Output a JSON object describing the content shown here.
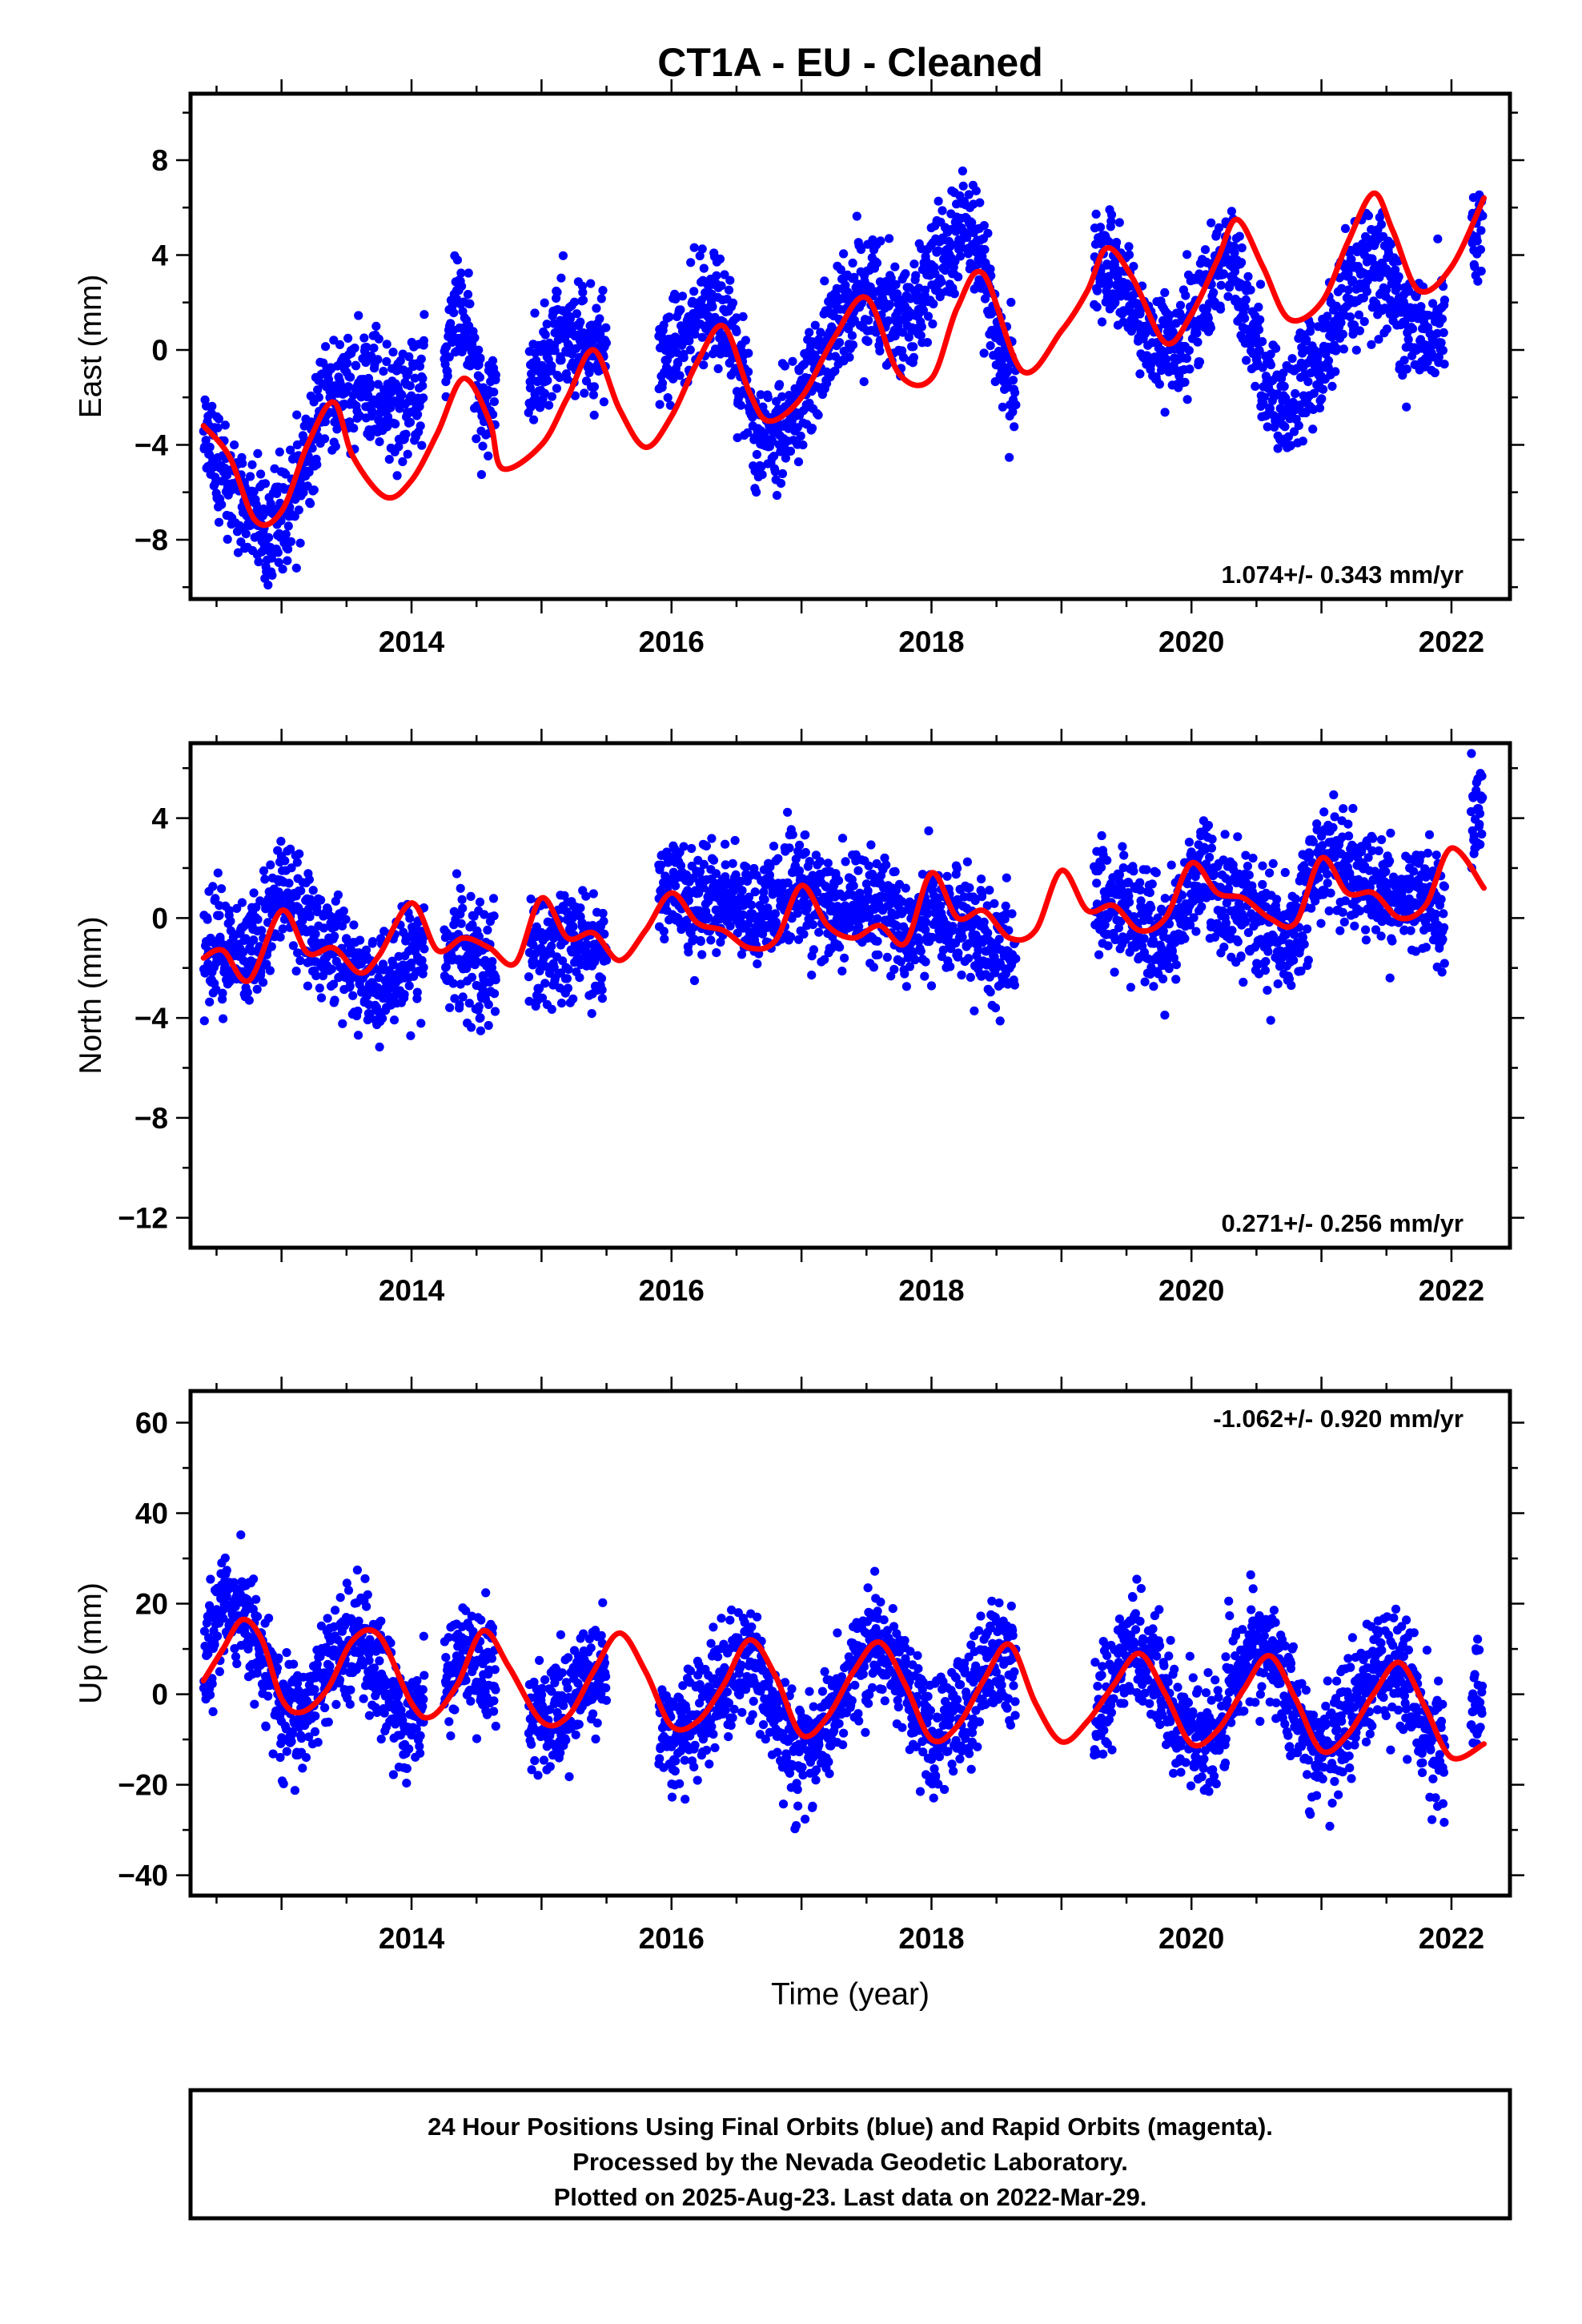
{
  "title": "CT1A  - EU - Cleaned",
  "footer": {
    "lines": [
      "24 Hour Positions Using Final Orbits (blue) and Rapid Orbits (magenta).",
      "Processed by the Nevada Geodetic Laboratory.",
      "Plotted on 2025-Aug-23. Last data on 2022-Mar-29."
    ]
  },
  "colors": {
    "data_points": "#0000ff",
    "model_fit": "#ff0000",
    "frame": "#000000"
  },
  "chart_data": [
    {
      "type": "scatter",
      "name": "east",
      "ylabel": "East (mm)",
      "xlabel": "",
      "xlim": [
        2012.3,
        2022.45
      ],
      "ylim": [
        -10.5,
        10.8
      ],
      "xticks": [
        2014,
        2016,
        2018,
        2020,
        2022
      ],
      "yticks": [
        -8,
        -4,
        0,
        4,
        8
      ],
      "yticklabels": [
        "−8",
        "−4",
        "0",
        "4",
        "8"
      ],
      "rate_text": "1.074+/- 0.343 mm/yr",
      "rate_position": "bottom-right",
      "observation_segments": [
        [
          2012.4,
          2013.25
        ],
        [
          2013.25,
          2014.1
        ],
        [
          2014.25,
          2014.65
        ],
        [
          2014.9,
          2015.5
        ],
        [
          2015.9,
          2018.65
        ],
        [
          2019.25,
          2021.95
        ],
        [
          2022.15,
          2022.24
        ]
      ],
      "series": [
        {
          "name": "",
          "kind": "model_line",
          "x": [
            2012.4,
            2012.6,
            2012.8,
            2013.0,
            2013.2,
            2013.4,
            2013.55,
            2013.8,
            2014.0,
            2014.2,
            2014.4,
            2014.6,
            2014.7,
            2015.0,
            2015.2,
            2015.4,
            2015.6,
            2015.8,
            2016.0,
            2016.2,
            2016.4,
            2016.6,
            2016.75,
            2017.0,
            2017.25,
            2017.5,
            2017.75,
            2018.0,
            2018.2,
            2018.4,
            2018.7,
            2019.0,
            2019.2,
            2019.35,
            2019.55,
            2019.8,
            2020.0,
            2020.2,
            2020.35,
            2020.55,
            2020.75,
            2021.0,
            2021.2,
            2021.4,
            2021.55,
            2021.75,
            2022.0,
            2022.25
          ],
          "y": [
            -3.2,
            -4.5,
            -7.2,
            -6.8,
            -4.0,
            -2.2,
            -4.5,
            -6.2,
            -5.5,
            -3.5,
            -1.2,
            -3.0,
            -5.0,
            -4.0,
            -2.0,
            0.0,
            -2.5,
            -4.1,
            -2.8,
            -0.5,
            1.0,
            -1.8,
            -3.0,
            -2.0,
            0.5,
            2.2,
            -1.0,
            -1.2,
            1.8,
            3.2,
            -0.9,
            0.8,
            2.5,
            4.3,
            3.0,
            0.3,
            1.5,
            3.8,
            5.5,
            3.5,
            1.3,
            2.0,
            4.5,
            6.6,
            5.0,
            2.5,
            3.5,
            6.4
          ]
        },
        {
          "name": "",
          "kind": "daily_positions",
          "x": [
            2012.4,
            2012.55,
            2012.7,
            2012.85,
            2013.0,
            2013.15,
            2013.3,
            2013.45,
            2013.6,
            2013.75,
            2013.9,
            2014.05,
            2014.25,
            2014.35,
            2014.45,
            2014.55,
            2014.95,
            2015.1,
            2015.25,
            2015.4,
            2015.9,
            2016.05,
            2016.2,
            2016.35,
            2016.5,
            2016.65,
            2016.8,
            2016.95,
            2017.1,
            2017.25,
            2017.4,
            2017.55,
            2017.7,
            2017.85,
            2018.0,
            2018.15,
            2018.3,
            2018.45,
            2018.6,
            2019.25,
            2019.4,
            2019.55,
            2019.7,
            2019.85,
            2020.0,
            2020.15,
            2020.3,
            2020.45,
            2020.6,
            2020.75,
            2020.9,
            2021.05,
            2021.2,
            2021.35,
            2021.5,
            2021.65,
            2021.8,
            2021.95,
            2022.15,
            2022.24
          ],
          "y": [
            -3.5,
            -4.8,
            -6.5,
            -7.5,
            -7.0,
            -5.5,
            -2.5,
            -1.5,
            -1.5,
            -2.0,
            -2.5,
            -2.0,
            -0.5,
            2.0,
            0.5,
            -2.5,
            -1.0,
            0.5,
            1.0,
            0.0,
            -1.0,
            0.5,
            1.5,
            2.0,
            -0.5,
            -3.5,
            -3.5,
            -2.5,
            -1.0,
            1.0,
            2.5,
            2.5,
            1.5,
            1.0,
            3.0,
            4.5,
            5.5,
            2.0,
            -1.5,
            4.0,
            3.5,
            1.5,
            0.0,
            0.0,
            1.5,
            2.5,
            4.0,
            1.0,
            -2.0,
            -2.5,
            -1.5,
            0.0,
            2.5,
            4.0,
            3.0,
            1.0,
            0.5,
            1.5,
            4.5,
            5.0
          ]
        }
      ]
    },
    {
      "type": "scatter",
      "name": "north",
      "ylabel": "North (mm)",
      "xlabel": "",
      "xlim": [
        2012.3,
        2022.45
      ],
      "ylim": [
        -13.2,
        7.0
      ],
      "xticks": [
        2014,
        2016,
        2018,
        2020,
        2022
      ],
      "yticks": [
        -12,
        -8,
        -4,
        0,
        4
      ],
      "yticklabels": [
        "−12",
        "−8",
        "−4",
        "0",
        "4"
      ],
      "rate_text": "0.271+/- 0.256 mm/yr",
      "rate_position": "bottom-right",
      "observation_segments": [
        [
          2012.4,
          2013.25
        ],
        [
          2013.25,
          2014.1
        ],
        [
          2014.25,
          2014.65
        ],
        [
          2014.9,
          2015.5
        ],
        [
          2015.9,
          2018.65
        ],
        [
          2019.25,
          2021.95
        ],
        [
          2022.15,
          2022.24
        ]
      ],
      "series": [
        {
          "name": "",
          "kind": "model_line",
          "x": [
            2012.4,
            2012.55,
            2012.75,
            2013.0,
            2013.2,
            2013.4,
            2013.6,
            2013.75,
            2014.0,
            2014.2,
            2014.4,
            2014.6,
            2014.8,
            2015.0,
            2015.2,
            2015.4,
            2015.6,
            2015.8,
            2016.0,
            2016.2,
            2016.4,
            2016.6,
            2016.8,
            2017.0,
            2017.2,
            2017.4,
            2017.6,
            2017.8,
            2018.0,
            2018.2,
            2018.4,
            2018.6,
            2018.8,
            2019.0,
            2019.2,
            2019.4,
            2019.6,
            2019.8,
            2020.0,
            2020.2,
            2020.4,
            2020.6,
            2020.8,
            2021.0,
            2021.2,
            2021.4,
            2021.6,
            2021.8,
            2022.0,
            2022.25
          ],
          "y": [
            -1.6,
            -1.3,
            -2.5,
            0.3,
            -1.4,
            -1.2,
            -2.2,
            -1.5,
            0.6,
            -1.3,
            -0.8,
            -1.2,
            -1.8,
            0.8,
            -0.8,
            -0.6,
            -1.7,
            -0.5,
            1.0,
            -0.2,
            -0.5,
            -1.2,
            -0.9,
            1.3,
            -0.3,
            -0.8,
            -0.3,
            -1.0,
            1.8,
            0.0,
            0.3,
            -0.8,
            -0.5,
            1.9,
            0.3,
            0.5,
            -0.5,
            0.0,
            2.2,
            1.0,
            0.8,
            0.0,
            -0.2,
            2.4,
            1.0,
            1.0,
            0.0,
            0.5,
            2.8,
            1.2
          ]
        },
        {
          "name": "",
          "kind": "daily_positions",
          "x": [
            2012.4,
            2012.55,
            2012.7,
            2012.85,
            2013.0,
            2013.15,
            2013.3,
            2013.45,
            2013.6,
            2013.75,
            2013.9,
            2014.05,
            2014.25,
            2014.35,
            2014.45,
            2014.55,
            2014.95,
            2015.1,
            2015.25,
            2015.4,
            2015.9,
            2016.05,
            2016.2,
            2016.35,
            2016.5,
            2016.65,
            2016.8,
            2016.95,
            2017.1,
            2017.25,
            2017.4,
            2017.55,
            2017.7,
            2017.85,
            2018.0,
            2018.15,
            2018.3,
            2018.45,
            2018.6,
            2019.25,
            2019.4,
            2019.55,
            2019.7,
            2019.85,
            2020.0,
            2020.15,
            2020.3,
            2020.45,
            2020.6,
            2020.75,
            2020.9,
            2021.05,
            2021.2,
            2021.35,
            2021.5,
            2021.65,
            2021.8,
            2021.95,
            2022.15,
            2022.24
          ],
          "y": [
            -1.5,
            -1.0,
            -1.5,
            -1.0,
            1.5,
            0.5,
            -1.0,
            -1.5,
            -2.5,
            -2.5,
            -2.0,
            -1.0,
            -2.5,
            -1.0,
            -1.5,
            -2.0,
            -1.0,
            -1.5,
            -1.0,
            -1.5,
            1.5,
            1.0,
            0.5,
            1.0,
            0.5,
            0.0,
            0.5,
            1.5,
            1.0,
            0.0,
            0.5,
            0.5,
            0.0,
            -0.5,
            0.5,
            0.0,
            -0.5,
            -1.0,
            -1.0,
            1.0,
            0.5,
            0.0,
            -0.5,
            -1.0,
            1.5,
            1.5,
            0.5,
            0.0,
            -0.5,
            -1.0,
            1.5,
            2.0,
            2.0,
            1.5,
            1.0,
            1.0,
            0.5,
            0.0,
            3.5,
            4.5
          ]
        }
      ]
    },
    {
      "type": "scatter",
      "name": "up",
      "ylabel": "Up (mm)",
      "xlabel": "Time (year)",
      "xlim": [
        2012.3,
        2022.45
      ],
      "ylim": [
        -44.5,
        67.0
      ],
      "xticks": [
        2014,
        2016,
        2018,
        2020,
        2022
      ],
      "yticks": [
        -40,
        -20,
        0,
        20,
        40,
        60
      ],
      "yticklabels": [
        "−40",
        "−20",
        "0",
        "20",
        "40",
        "60"
      ],
      "rate_text": "-1.062+/- 0.920 mm/yr",
      "rate_position": "top-right",
      "observation_segments": [
        [
          2012.4,
          2013.25
        ],
        [
          2013.25,
          2014.1
        ],
        [
          2014.25,
          2014.65
        ],
        [
          2014.9,
          2015.5
        ],
        [
          2015.9,
          2018.65
        ],
        [
          2019.25,
          2021.95
        ],
        [
          2022.15,
          2022.24
        ]
      ],
      "series": [
        {
          "name": "",
          "kind": "model_line",
          "x": [
            2012.4,
            2012.55,
            2012.7,
            2012.85,
            2013.0,
            2013.15,
            2013.35,
            2013.55,
            2013.75,
            2014.0,
            2014.15,
            2014.35,
            2014.55,
            2014.75,
            2015.0,
            2015.2,
            2015.4,
            2015.6,
            2015.8,
            2016.0,
            2016.2,
            2016.4,
            2016.6,
            2016.8,
            2017.0,
            2017.2,
            2017.4,
            2017.6,
            2017.8,
            2018.0,
            2018.2,
            2018.4,
            2018.6,
            2018.8,
            2019.0,
            2019.2,
            2019.4,
            2019.6,
            2019.8,
            2020.0,
            2020.2,
            2020.4,
            2020.6,
            2020.8,
            2021.0,
            2021.2,
            2021.4,
            2021.6,
            2021.8,
            2022.0,
            2022.25
          ],
          "y": [
            3.0,
            10.0,
            16.5,
            12.0,
            -1.0,
            -4.0,
            1.0,
            12.0,
            13.0,
            -2.0,
            -5.0,
            2.0,
            14.0,
            6.0,
            -6.0,
            -5.0,
            5.0,
            13.5,
            5.0,
            -7.0,
            -6.0,
            2.0,
            12.0,
            4.0,
            -9.0,
            -5.0,
            5.0,
            11.5,
            2.0,
            -10.0,
            -7.0,
            3.0,
            11.0,
            -2.0,
            -10.5,
            -6.0,
            2.0,
            9.0,
            0.0,
            -11.0,
            -8.0,
            1.0,
            8.5,
            -1.0,
            -12.5,
            -9.0,
            0.0,
            7.0,
            -3.0,
            -14.0,
            -11.0
          ]
        },
        {
          "name": "",
          "kind": "daily_positions",
          "x": [
            2012.4,
            2012.55,
            2012.7,
            2012.85,
            2013.0,
            2013.15,
            2013.3,
            2013.45,
            2013.6,
            2013.75,
            2013.9,
            2014.05,
            2014.25,
            2014.35,
            2014.45,
            2014.55,
            2014.95,
            2015.1,
            2015.25,
            2015.4,
            2015.9,
            2016.05,
            2016.2,
            2016.35,
            2016.5,
            2016.65,
            2016.8,
            2016.95,
            2017.1,
            2017.25,
            2017.4,
            2017.55,
            2017.7,
            2017.85,
            2018.0,
            2018.15,
            2018.3,
            2018.45,
            2018.6,
            2019.25,
            2019.4,
            2019.55,
            2019.7,
            2019.85,
            2020.0,
            2020.15,
            2020.3,
            2020.45,
            2020.6,
            2020.75,
            2020.9,
            2021.05,
            2021.2,
            2021.35,
            2021.5,
            2021.65,
            2021.8,
            2021.95,
            2022.15,
            2022.24
          ],
          "y": [
            8.0,
            20.0,
            18.0,
            8.0,
            -4.0,
            -6.0,
            2.0,
            8.0,
            12.0,
            5.0,
            -5.0,
            -6.0,
            2.0,
            8.0,
            10.0,
            8.0,
            -5.0,
            -4.0,
            2.0,
            5.0,
            -8.0,
            -9.0,
            -5.0,
            0.0,
            5.0,
            5.0,
            -5.0,
            -14.0,
            -12.0,
            -5.0,
            5.0,
            12.0,
            8.0,
            -3.0,
            -10.0,
            -8.0,
            0.0,
            8.0,
            10.0,
            -5.0,
            3.0,
            12.0,
            8.0,
            -4.0,
            -10.0,
            -10.0,
            0.0,
            8.0,
            10.0,
            0.0,
            -12.0,
            -12.0,
            -5.0,
            3.0,
            8.0,
            3.0,
            -8.0,
            -12.0,
            -3.0,
            0.0
          ]
        }
      ]
    }
  ]
}
